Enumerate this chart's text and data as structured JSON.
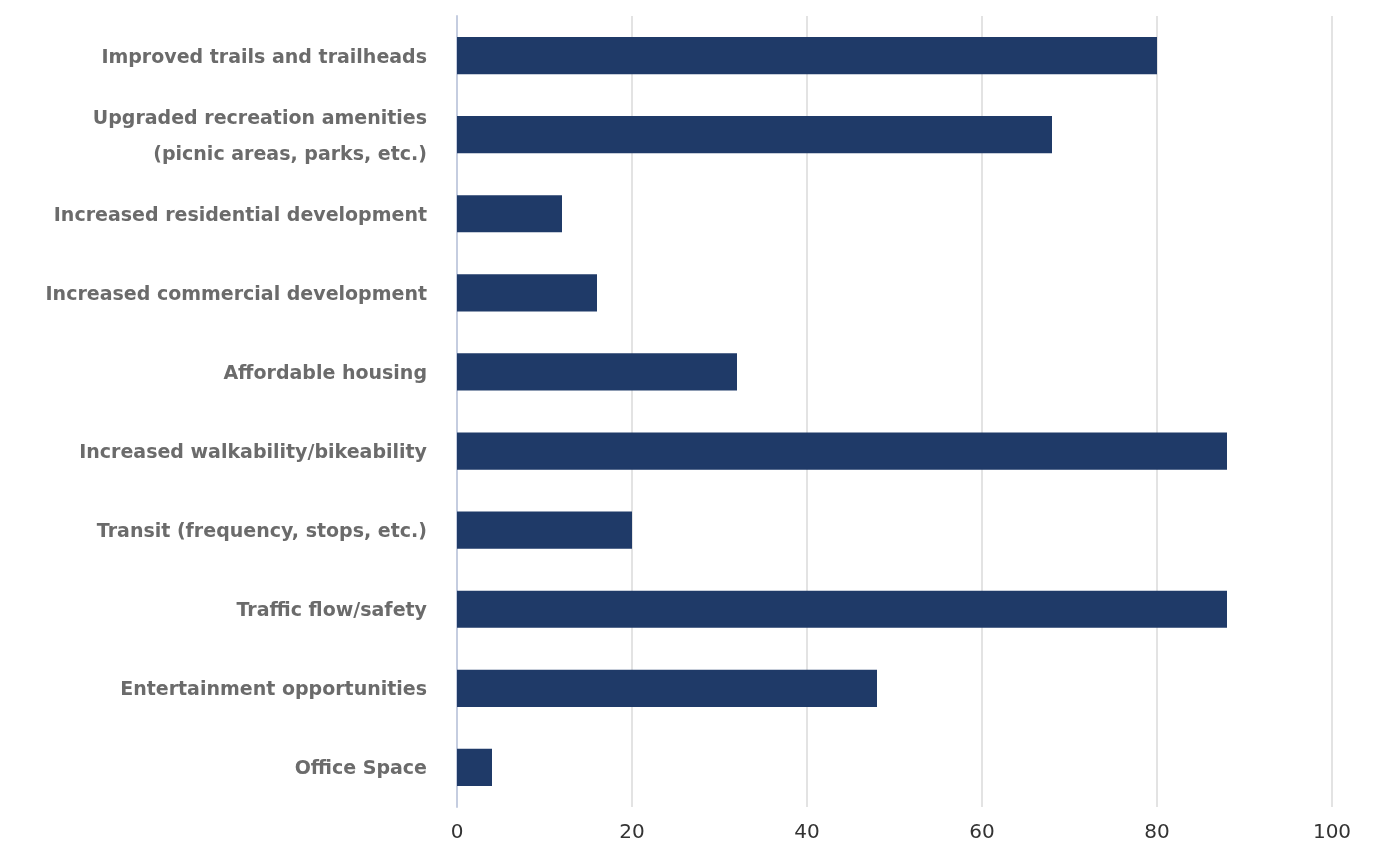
{
  "chart_data": {
    "type": "bar",
    "orientation": "horizontal",
    "categories": [
      "Improved trails and trailheads",
      "Upgraded recreation amenities\n(picnic areas, parks, etc.)",
      "Increased residential development",
      "Increased commercial development",
      "Affordable housing",
      "Increased walkability/bikeability",
      "Transit (frequency, stops, etc.)",
      "Traffic flow/safety",
      "Entertainment opportunities",
      "Office Space"
    ],
    "values": [
      80,
      68,
      12,
      16,
      32,
      88,
      20,
      88,
      48,
      4
    ],
    "color": "#1f3a68",
    "xlim": [
      0,
      100
    ],
    "xticks": [
      0,
      20,
      40,
      60,
      80,
      100
    ],
    "grid": "x"
  }
}
